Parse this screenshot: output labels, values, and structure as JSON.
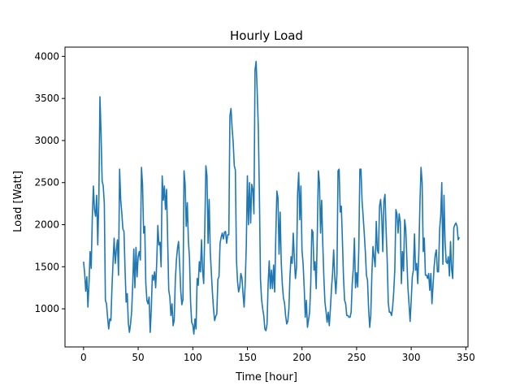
{
  "chart_data": {
    "type": "line",
    "title": "Hourly Load",
    "xlabel": "Time [hour]",
    "ylabel": "Load [Watt]",
    "xlim": [
      -17,
      352
    ],
    "ylim": [
      547,
      4110
    ],
    "xticks": [
      0,
      50,
      100,
      150,
      200,
      250,
      300,
      350
    ],
    "yticks": [
      1000,
      1500,
      2000,
      2500,
      3000,
      3500,
      4000
    ],
    "grid": false,
    "color": "#1f77b4",
    "series": [
      {
        "values": [
          1560,
          1420,
          1210,
          1380,
          1020,
          1310,
          1680,
          1480,
          2080,
          2460,
          2180,
          2100,
          2350,
          1760,
          2300,
          3520,
          3090,
          2520,
          2460,
          2250,
          1100,
          1060,
          900,
          760,
          880,
          860,
          1250,
          1560,
          1840,
          1540,
          1700,
          1820,
          1400,
          2660,
          2300,
          2140,
          1950,
          1920,
          1460,
          1080,
          1180,
          830,
          720,
          820,
          960,
          1280,
          1710,
          1250,
          1730,
          1380,
          1620,
          1680,
          1580,
          2680,
          2480,
          1900,
          1980,
          1300,
          1100,
          1060,
          1140,
          720,
          990,
          1400,
          1340,
          1440,
          1250,
          1550,
          1990,
          1760,
          1790,
          1500,
          2580,
          2290,
          2460,
          2180,
          2420,
          1820,
          1220,
          1140,
          920,
          1060,
          800,
          870,
          1330,
          1580,
          1720,
          1800,
          1520,
          1210,
          1050,
          1110,
          2640,
          2480,
          1980,
          2260,
          1800,
          1600,
          1080,
          840,
          810,
          700,
          880,
          760,
          1360,
          1280,
          1560,
          1440,
          1820,
          1450,
          1300,
          1950,
          2700,
          2580,
          1780,
          2300,
          1680,
          1430,
          1190,
          1000,
          860,
          910,
          940,
          1350,
          1380,
          1780,
          1850,
          1900,
          1830,
          1910,
          1920,
          1780,
          1880,
          1880,
          3290,
          3380,
          3150,
          2980,
          2700,
          2650,
          1580,
          1320,
          1200,
          1260,
          1420,
          1370,
          1180,
          1020,
          1300,
          1750,
          2580,
          2000,
          2500,
          2020,
          2480,
          2420,
          2130,
          3840,
          3940,
          3580,
          3160,
          2350,
          1350,
          1110,
          1000,
          920,
          760,
          740,
          820,
          1300,
          1570,
          1240,
          1460,
          1240,
          1520,
          1200,
          1860,
          2400,
          2320,
          1650,
          2150,
          1550,
          1290,
          1130,
          1070,
          920,
          820,
          850,
          1000,
          1390,
          1620,
          1540,
          1900,
          1600,
          1360,
          1490,
          2380,
          2620,
          2060,
          2460,
          1690,
          1540,
          1260,
          900,
          1100,
          780,
          870,
          960,
          1290,
          1940,
          1910,
          1460,
          1560,
          1240,
          1880,
          2640,
          2500,
          1900,
          2290,
          1790,
          1380,
          1080,
          970,
          840,
          960,
          800,
          1000,
          1240,
          1420,
          1700,
          1380,
          1180,
          1420,
          2640,
          2660,
          2150,
          2220,
          1820,
          1380,
          1100,
          1060,
          920,
          920,
          900,
          900,
          960,
          1300,
          1480,
          1840,
          1250,
          1430,
          1260,
          1700,
          2660,
          2660,
          2280,
          2100,
          1900,
          1680,
          1400,
          1340,
          1000,
          780,
          930,
          1420,
          1740,
          1610,
          1500,
          2040,
          1700,
          1660,
          2220,
          2300,
          2100,
          1680,
          2280,
          2360,
          1940,
          1580,
          1070,
          960,
          960,
          920,
          1020,
          1200,
          1470,
          2180,
          2120,
          1900,
          2130,
          2030,
          1300,
          1680,
          1450,
          2060,
          1950,
          1600,
          1250,
          1060,
          850,
          1100,
          1380,
          1460,
          1890,
          1460,
          1540,
          1300,
          1670,
          2260,
          2680,
          2500,
          1680,
          1840,
          1400,
          1400,
          1360,
          1420,
          1220,
          1420,
          1060,
          1280,
          1500,
          1640,
          1700,
          1440,
          1440,
          1940,
          2100,
          2500,
          1530,
          2350,
          1800,
          1560,
          1540,
          1620,
          1390,
          1800,
          1470,
          1360,
          1960,
          2000,
          2020,
          1980,
          1820,
          1850
        ]
      }
    ]
  }
}
